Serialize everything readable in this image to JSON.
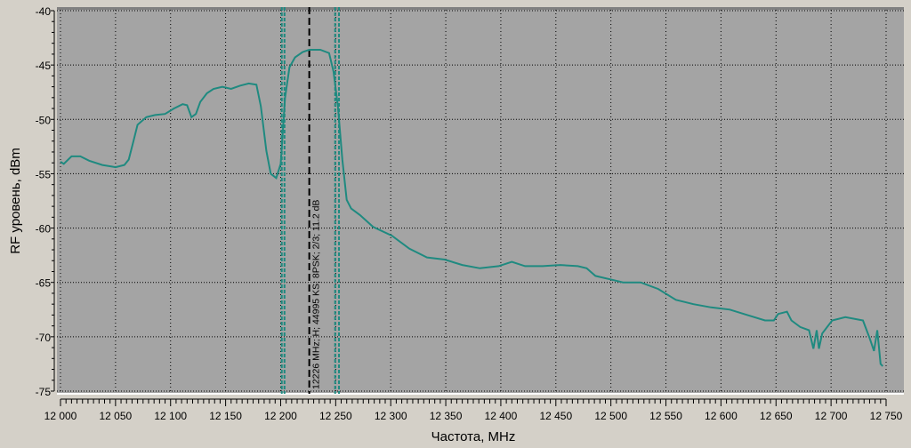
{
  "chart_data": {
    "type": "line",
    "title": "",
    "xlabel": "Частота, MHz",
    "ylabel": "RF уровень, dBm",
    "xlim": [
      12000,
      12750
    ],
    "ylim": [
      -75,
      -40
    ],
    "grid": true,
    "x_ticks": [
      "12 000",
      "12 050",
      "12 100",
      "12 150",
      "12 200",
      "12 250",
      "12 300",
      "12 350",
      "12 400",
      "12 450",
      "12 500",
      "12 550",
      "12 600",
      "12 650",
      "12 700",
      "12 750"
    ],
    "y_ticks": [
      "-40",
      "-45",
      "-50",
      "-55",
      "-60",
      "-65",
      "-70",
      "-75"
    ],
    "colors": {
      "plot_bg": "#a4a4a4",
      "line": "#1f8a80",
      "marker_center": "#000000",
      "marker_band": "#1f8a80",
      "window_bg": "#d4d0c8"
    },
    "markers": {
      "center_mhz": 12226,
      "band_edges_mhz": [
        12201,
        12203.5,
        12249.5,
        12253
      ],
      "annotation": "12226 MHz; H; 44995 KS; 8PSK; 2/3; 11.2 dB"
    },
    "series": [
      {
        "x": [
          12000,
          12003,
          12010,
          12018,
          12026,
          12038,
          12050,
          12058,
          12062,
          12066,
          12070,
          12078,
          12086,
          12095,
          12103,
          12111,
          12115,
          12119,
          12123,
          12127,
          12133,
          12139,
          12147,
          12155,
          12163,
          12171,
          12178,
          12182,
          12187,
          12191,
          12196,
          12200,
          12204,
          12208,
          12213,
          12220,
          12226,
          12236,
          12244,
          12248,
          12252,
          12256,
          12260,
          12264,
          12272,
          12284,
          12301,
          12317,
          12333,
          12349,
          12365,
          12381,
          12398,
          12410,
          12422,
          12438,
          12454,
          12470,
          12478,
          12486,
          12503,
          12511,
          12527,
          12543,
          12559,
          12575,
          12591,
          12608,
          12624,
          12640,
          12648,
          12652,
          12660,
          12664,
          12672,
          12680,
          12684,
          12687,
          12689,
          12692,
          12701,
          12713,
          12729,
          12735,
          12739,
          12742,
          12745,
          12747
        ],
        "y": [
          -53.9,
          -54.1,
          -53.4,
          -53.4,
          -53.8,
          -54.2,
          -54.4,
          -54.2,
          -53.7,
          -52.1,
          -50.5,
          -49.8,
          -49.6,
          -49.5,
          -49.0,
          -48.6,
          -48.7,
          -49.8,
          -49.5,
          -48.4,
          -47.6,
          -47.2,
          -47.0,
          -47.2,
          -46.9,
          -46.7,
          -46.8,
          -48.8,
          -52.9,
          -55.0,
          -55.4,
          -54.1,
          -48.0,
          -45.2,
          -44.3,
          -43.8,
          -43.6,
          -43.6,
          -43.9,
          -45.6,
          -48.8,
          -53.7,
          -57.4,
          -58.2,
          -58.8,
          -59.9,
          -60.7,
          -61.9,
          -62.7,
          -62.9,
          -63.4,
          -63.7,
          -63.5,
          -63.1,
          -63.5,
          -63.5,
          -63.4,
          -63.5,
          -63.7,
          -64.4,
          -64.8,
          -65.0,
          -65.0,
          -65.6,
          -66.6,
          -67.0,
          -67.3,
          -67.5,
          -68.0,
          -68.5,
          -68.5,
          -67.9,
          -67.7,
          -68.5,
          -69.1,
          -69.4,
          -71.1,
          -69.4,
          -71.1,
          -69.7,
          -68.5,
          -68.2,
          -68.5,
          -70.1,
          -71.3,
          -69.4,
          -72.5,
          -72.7
        ]
      }
    ]
  }
}
